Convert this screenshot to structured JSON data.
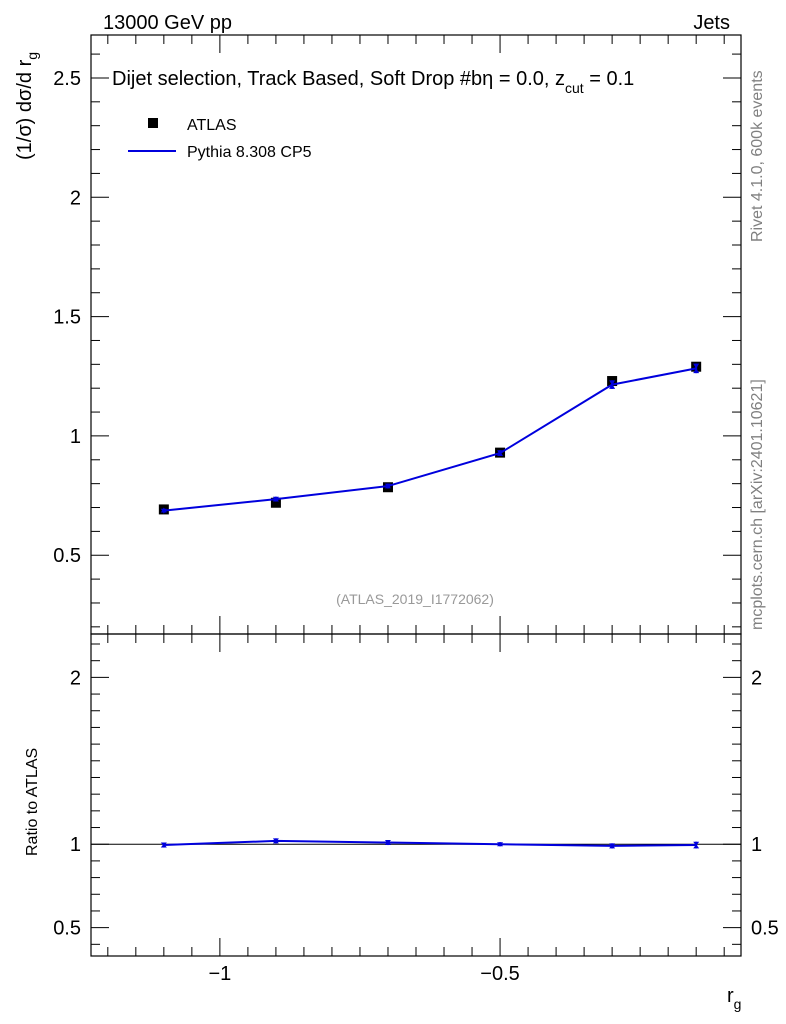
{
  "header": {
    "energy_label": "13000 GeV pp",
    "category_label": "Jets"
  },
  "side_labels": {
    "rivet": "Rivet 4.1.0,  600k events",
    "source": "mcplots.cern.ch [arXiv:2401.10621]"
  },
  "colors": {
    "mc": "#0000dd",
    "data": "#000000",
    "watermark": "#999999"
  },
  "chart_data": [
    {
      "panel": "main",
      "type": "line",
      "title": "Dijet selection, Track Based, Soft Drop #bη = 0.0, z_cut = 0.1",
      "title_parts": {
        "main": "Dijet selection, Track Based, Soft Drop #bη = 0.0, z",
        "sub": "cut",
        "rest": " = 0.1"
      },
      "ylabel": "(1/σ) dσ/d r",
      "ylabel_sub": "g",
      "xlabel": "r",
      "xlabel_sub": "g",
      "xlim": [
        -1.23,
        -0.07
      ],
      "ylim": [
        0.17,
        2.68
      ],
      "yticks": [
        0.5,
        1,
        1.5,
        2,
        2.5
      ],
      "ytick_labels": [
        "0.5",
        "1",
        "1.5",
        "2",
        "2.5"
      ],
      "legend_position": "top-left",
      "analysis_id": "(ATLAS_2019_I1772062)",
      "series": [
        {
          "name": "ATLAS",
          "style": "markers",
          "x": [
            -1.1,
            -0.9,
            -0.7,
            -0.5,
            -0.3,
            -0.15
          ],
          "values": [
            0.692,
            0.72,
            0.785,
            0.93,
            1.23,
            1.29
          ]
        },
        {
          "name": "Pythia 8.308 CP5",
          "style": "line",
          "x": [
            -1.1,
            -0.9,
            -0.7,
            -0.5,
            -0.3,
            -0.15
          ],
          "values": [
            0.687,
            0.735,
            0.79,
            0.928,
            1.215,
            1.283
          ],
          "errors": [
            0.008,
            0.01,
            0.01,
            0.012,
            0.018,
            0.02
          ]
        }
      ]
    },
    {
      "panel": "ratio",
      "type": "line",
      "ylabel": "Ratio to ATLAS",
      "xlim": [
        -1.23,
        -0.07
      ],
      "ylim": [
        0.33,
        2.26
      ],
      "yticks": [
        0.5,
        1,
        2
      ],
      "ytick_labels": [
        "0.5",
        "1",
        "2"
      ],
      "xticks": [
        -1,
        -0.5
      ],
      "xtick_labels": [
        "−1",
        "−0.5"
      ],
      "series": [
        {
          "name": "Pythia 8.308 CP5 / ATLAS",
          "x": [
            -1.1,
            -0.9,
            -0.7,
            -0.5,
            -0.3,
            -0.15
          ],
          "values": [
            0.995,
            1.02,
            1.01,
            1.0,
            0.99,
            0.995
          ],
          "errors": [
            0.015,
            0.015,
            0.015,
            0.012,
            0.015,
            0.02
          ]
        }
      ]
    }
  ]
}
